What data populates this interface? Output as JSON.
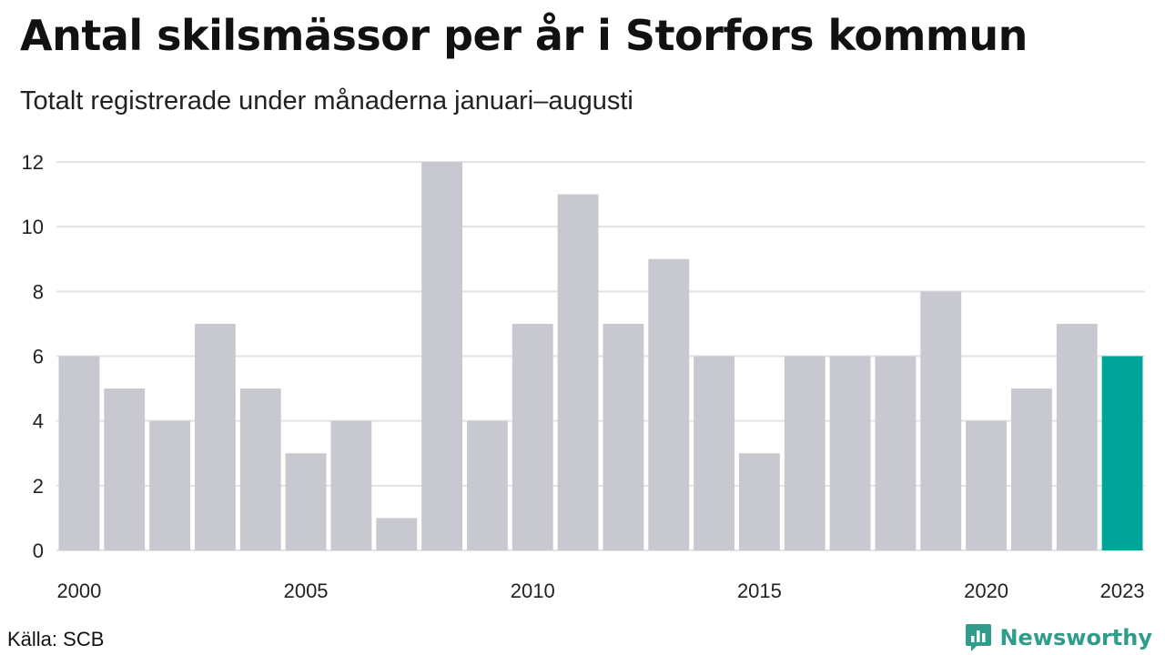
{
  "title": "Antal skilsmässor per år i Storfors kommun",
  "subtitle": "Totalt registrerade under månaderna januari–augusti",
  "source": "Källa: SCB",
  "brand": "Newsworthy",
  "colors": {
    "bar": "#c8c8d0",
    "highlight": "#00a398",
    "grid": "#e3e3e3",
    "brand": "#2f9c8c"
  },
  "chart_data": {
    "type": "bar",
    "categories": [
      "2000",
      "2001",
      "2002",
      "2003",
      "2004",
      "2005",
      "2006",
      "2007",
      "2008",
      "2009",
      "2010",
      "2011",
      "2012",
      "2013",
      "2014",
      "2015",
      "2016",
      "2017",
      "2018",
      "2019",
      "2020",
      "2021",
      "2022",
      "2023"
    ],
    "values": [
      6,
      5,
      4,
      7,
      5,
      3,
      4,
      1,
      12,
      4,
      7,
      11,
      7,
      9,
      6,
      3,
      6,
      6,
      6,
      8,
      4,
      5,
      7,
      6
    ],
    "highlight_category": "2023",
    "x_tick_labels": [
      "2000",
      "2005",
      "2010",
      "2015",
      "2020",
      "2023"
    ],
    "y_ticks": [
      0,
      2,
      4,
      6,
      8,
      10,
      12
    ],
    "ylim": [
      0,
      12
    ],
    "grid": true,
    "xlabel": "",
    "ylabel": ""
  }
}
